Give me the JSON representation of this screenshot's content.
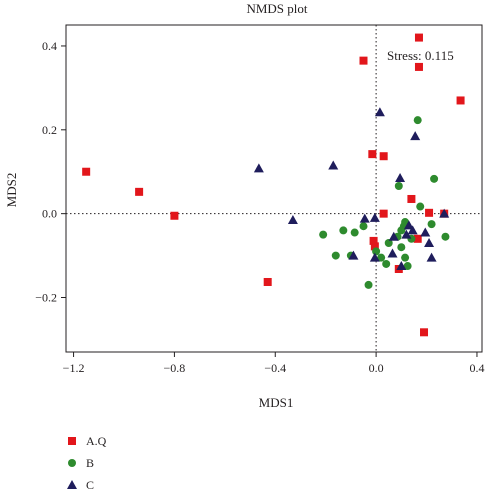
{
  "chart_data": {
    "type": "scatter",
    "title": "NMDS plot",
    "xlabel": "MDS1",
    "ylabel": "MDS2",
    "xlim": [
      -1.23,
      0.42
    ],
    "ylim": [
      -0.33,
      0.45
    ],
    "xticks": [
      -1.2,
      -0.8,
      -0.4,
      0.0,
      0.4
    ],
    "xtick_labels": [
      "−1.2",
      "−0.8",
      "−0.4",
      "0.0",
      "0.4"
    ],
    "yticks": [
      -0.2,
      0.0,
      0.2,
      0.4
    ],
    "ytick_labels": [
      "−0.2",
      "0.0",
      "0.2",
      "0.4"
    ],
    "reference_lines": {
      "x": 0,
      "y": 0,
      "style": "dotted"
    },
    "annotation": "Stress: 0.115",
    "legend_position": "bottom-left, below plot",
    "series": [
      {
        "name": "A.Q",
        "marker": "square",
        "color": "#e2161b",
        "points": [
          [
            0.17,
            0.42
          ],
          [
            -0.05,
            0.365
          ],
          [
            0.17,
            0.35
          ],
          [
            0.335,
            0.27
          ],
          [
            -0.015,
            0.142
          ],
          [
            0.03,
            0.137
          ],
          [
            -1.15,
            0.1
          ],
          [
            -0.94,
            0.052
          ],
          [
            -0.8,
            -0.005
          ],
          [
            -0.43,
            -0.163
          ],
          [
            0.14,
            0.035
          ],
          [
            0.03,
            0.0
          ],
          [
            0.21,
            0.002
          ],
          [
            0.27,
            0.0
          ],
          [
            -0.01,
            -0.065
          ],
          [
            -0.005,
            -0.078
          ],
          [
            0.165,
            -0.06
          ],
          [
            0.09,
            -0.132
          ],
          [
            0.19,
            -0.283
          ]
        ]
      },
      {
        "name": "B",
        "marker": "circle",
        "color": "#2e8b2e",
        "points": [
          [
            0.165,
            0.223
          ],
          [
            0.09,
            0.066
          ],
          [
            0.23,
            0.083
          ],
          [
            0.175,
            0.017
          ],
          [
            0.22,
            -0.025
          ],
          [
            0.115,
            -0.02
          ],
          [
            0.11,
            -0.03
          ],
          [
            0.1,
            -0.04
          ],
          [
            -0.05,
            -0.03
          ],
          [
            -0.085,
            -0.045
          ],
          [
            -0.13,
            -0.04
          ],
          [
            -0.21,
            -0.05
          ],
          [
            -0.1,
            -0.1
          ],
          [
            -0.16,
            -0.1
          ],
          [
            0.05,
            -0.07
          ],
          [
            0.1,
            -0.08
          ],
          [
            0.14,
            -0.06
          ],
          [
            0.085,
            -0.055
          ],
          [
            0.02,
            -0.105
          ],
          [
            0.04,
            -0.12
          ],
          [
            0.115,
            -0.105
          ],
          [
            0.125,
            -0.125
          ],
          [
            0.275,
            -0.055
          ],
          [
            -0.03,
            -0.17
          ],
          [
            0.0,
            -0.09
          ]
        ]
      },
      {
        "name": "C",
        "marker": "triangle",
        "color": "#1f1d5c",
        "points": [
          [
            0.015,
            0.242
          ],
          [
            0.155,
            0.185
          ],
          [
            -0.17,
            0.115
          ],
          [
            -0.465,
            0.108
          ],
          [
            0.095,
            0.085
          ],
          [
            -0.005,
            -0.01
          ],
          [
            -0.33,
            -0.015
          ],
          [
            0.27,
            0.0
          ],
          [
            -0.045,
            -0.012
          ],
          [
            0.13,
            -0.028
          ],
          [
            0.145,
            -0.04
          ],
          [
            0.12,
            -0.05
          ],
          [
            0.07,
            -0.055
          ],
          [
            0.195,
            -0.045
          ],
          [
            -0.09,
            -0.1
          ],
          [
            0.065,
            -0.095
          ],
          [
            -0.005,
            -0.105
          ],
          [
            0.22,
            -0.105
          ],
          [
            0.1,
            -0.125
          ],
          [
            0.21,
            -0.07
          ]
        ]
      }
    ]
  }
}
